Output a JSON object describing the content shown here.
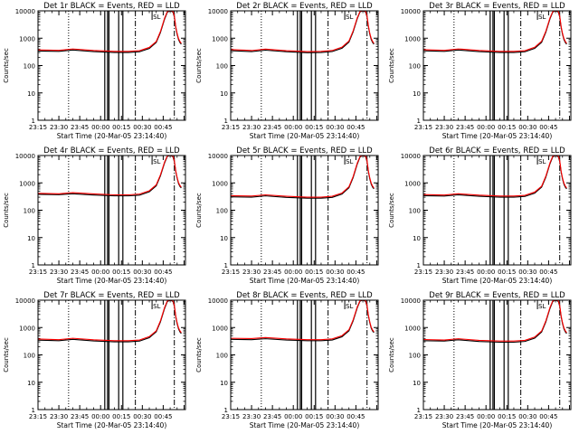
{
  "chart_data": [
    {
      "type": "line",
      "title": "Det 1r BLACK = Events, RED = LLD",
      "xlabel": "Start Time (20-Mar-05 23:14:40)",
      "ylabel": "Counts/sec",
      "series": [
        {
          "color": "#000000",
          "x": [
            0,
            15,
            25,
            40,
            55,
            65,
            73,
            80,
            85,
            88,
            91,
            93,
            95,
            96,
            97,
            98,
            99,
            100,
            101,
            102,
            103
          ],
          "y": [
            340,
            330,
            370,
            325,
            300,
            300,
            320,
            420,
            700,
            1600,
            5000,
            9000,
            10000,
            9500,
            9000,
            6000,
            2500,
            1400,
            900,
            700,
            600
          ]
        },
        {
          "color": "#ff0000",
          "x": [
            0,
            15,
            25,
            40,
            55,
            65,
            73,
            80,
            85,
            88,
            91,
            93,
            95,
            96,
            97,
            98,
            99,
            100,
            101,
            102,
            103
          ],
          "y": [
            375,
            360,
            405,
            355,
            330,
            330,
            350,
            460,
            760,
            1750,
            5400,
            9500,
            10000,
            9800,
            9500,
            6500,
            2700,
            1500,
            980,
            760,
            650
          ]
        }
      ]
    },
    {
      "type": "line",
      "title": "Det 2r BLACK = Events, RED = LLD",
      "xlabel": "Start Time (20-Mar-05 23:14:40)",
      "ylabel": "Counts/sec",
      "series": [
        {
          "color": "#000000",
          "x": [
            0,
            15,
            25,
            40,
            55,
            65,
            73,
            80,
            85,
            88,
            91,
            93,
            95,
            96,
            97,
            98,
            99,
            100,
            101,
            102,
            103
          ],
          "y": [
            350,
            325,
            365,
            320,
            295,
            300,
            325,
            430,
            720,
            1700,
            5200,
            9200,
            10000,
            9600,
            9000,
            6000,
            2600,
            1400,
            900,
            700,
            600
          ]
        },
        {
          "color": "#ff0000",
          "x": [
            0,
            15,
            25,
            40,
            55,
            65,
            73,
            80,
            85,
            88,
            91,
            93,
            95,
            96,
            97,
            98,
            99,
            100,
            101,
            102,
            103
          ],
          "y": [
            385,
            355,
            400,
            350,
            325,
            330,
            355,
            470,
            790,
            1850,
            5600,
            9600,
            10000,
            9800,
            9500,
            6500,
            2800,
            1500,
            980,
            760,
            650
          ]
        }
      ]
    },
    {
      "type": "line",
      "title": "Det 3r BLACK = Events, RED = LLD",
      "xlabel": "Start Time (20-Mar-05 23:14:40)",
      "ylabel": "Counts/sec",
      "series": [
        {
          "color": "#000000",
          "x": [
            0,
            15,
            25,
            40,
            55,
            65,
            73,
            80,
            85,
            88,
            91,
            93,
            95,
            96,
            97,
            98,
            99,
            100,
            101,
            102,
            103
          ],
          "y": [
            345,
            330,
            370,
            325,
            300,
            300,
            320,
            425,
            710,
            1650,
            5100,
            9100,
            10000,
            9500,
            9000,
            6000,
            2500,
            1400,
            900,
            700,
            600
          ]
        },
        {
          "color": "#ff0000",
          "x": [
            0,
            15,
            25,
            40,
            55,
            65,
            73,
            80,
            85,
            88,
            91,
            93,
            95,
            96,
            97,
            98,
            99,
            100,
            101,
            102,
            103
          ],
          "y": [
            380,
            360,
            405,
            355,
            330,
            330,
            350,
            465,
            780,
            1800,
            5500,
            9500,
            10000,
            9800,
            9500,
            6500,
            2700,
            1500,
            980,
            760,
            650
          ]
        }
      ]
    },
    {
      "type": "line",
      "title": "Det 4r BLACK = Events, RED = LLD",
      "xlabel": "Start Time (20-Mar-05 23:14:40)",
      "ylabel": "Counts/sec",
      "series": [
        {
          "color": "#000000",
          "x": [
            0,
            15,
            25,
            40,
            55,
            65,
            73,
            80,
            85,
            88,
            91,
            93,
            95,
            96,
            97,
            98,
            99,
            100,
            101,
            102,
            103
          ],
          "y": [
            380,
            370,
            400,
            360,
            335,
            335,
            355,
            470,
            780,
            1800,
            5400,
            9400,
            10000,
            9600,
            9000,
            6000,
            2600,
            1500,
            950,
            750,
            650
          ]
        },
        {
          "color": "#ff0000",
          "x": [
            0,
            15,
            25,
            40,
            55,
            65,
            73,
            80,
            85,
            88,
            91,
            93,
            95,
            96,
            97,
            98,
            99,
            100,
            101,
            102,
            103
          ],
          "y": [
            415,
            400,
            440,
            395,
            365,
            365,
            390,
            515,
            850,
            1950,
            5800,
            9800,
            10000,
            9800,
            9500,
            6500,
            2800,
            1600,
            1030,
            810,
            700
          ]
        }
      ]
    },
    {
      "type": "line",
      "title": "Det 5r BLACK = Events, RED = LLD",
      "xlabel": "Start Time (20-Mar-05 23:14:40)",
      "ylabel": "Counts/sec",
      "series": [
        {
          "color": "#000000",
          "x": [
            0,
            15,
            25,
            40,
            55,
            65,
            73,
            80,
            85,
            88,
            91,
            93,
            95,
            96,
            97,
            98,
            99,
            100,
            101,
            102,
            103
          ],
          "y": [
            310,
            300,
            335,
            295,
            275,
            275,
            295,
            390,
            660,
            1550,
            4900,
            8900,
            10000,
            9500,
            9000,
            6000,
            2500,
            1400,
            900,
            700,
            600
          ]
        },
        {
          "color": "#ff0000",
          "x": [
            0,
            15,
            25,
            40,
            55,
            65,
            73,
            80,
            85,
            88,
            91,
            93,
            95,
            96,
            97,
            98,
            99,
            100,
            101,
            102,
            103
          ],
          "y": [
            340,
            330,
            365,
            325,
            300,
            300,
            325,
            425,
            720,
            1700,
            5300,
            9300,
            10000,
            9800,
            9500,
            6500,
            2700,
            1500,
            980,
            760,
            650
          ]
        }
      ]
    },
    {
      "type": "line",
      "title": "Det 6r BLACK = Events, RED = LLD",
      "xlabel": "Start Time (20-Mar-05 23:14:40)",
      "ylabel": "Counts/sec",
      "series": [
        {
          "color": "#000000",
          "x": [
            0,
            15,
            25,
            40,
            55,
            65,
            73,
            80,
            85,
            88,
            91,
            93,
            95,
            96,
            97,
            98,
            99,
            100,
            101,
            102,
            103
          ],
          "y": [
            340,
            330,
            365,
            325,
            300,
            300,
            320,
            420,
            700,
            1600,
            5000,
            9000,
            10000,
            9500,
            9000,
            6000,
            2500,
            1400,
            900,
            700,
            600
          ]
        },
        {
          "color": "#ff0000",
          "x": [
            0,
            15,
            25,
            40,
            55,
            65,
            73,
            80,
            85,
            88,
            91,
            93,
            95,
            96,
            97,
            98,
            99,
            100,
            101,
            102,
            103
          ],
          "y": [
            375,
            360,
            400,
            355,
            330,
            330,
            350,
            460,
            760,
            1750,
            5400,
            9500,
            10000,
            9800,
            9500,
            6500,
            2700,
            1500,
            980,
            760,
            650
          ]
        }
      ]
    },
    {
      "type": "line",
      "title": "Det 7r BLACK = Events, RED = LLD",
      "xlabel": "Start Time (20-Mar-05 23:14:40)",
      "ylabel": "Counts/sec",
      "series": [
        {
          "color": "#000000",
          "x": [
            0,
            15,
            25,
            40,
            55,
            65,
            73,
            80,
            85,
            88,
            91,
            93,
            95,
            96,
            97,
            98,
            99,
            100,
            101,
            102,
            103
          ],
          "y": [
            345,
            330,
            370,
            325,
            300,
            300,
            320,
            425,
            700,
            1600,
            5000,
            9000,
            10000,
            9500,
            9000,
            6000,
            2500,
            1400,
            900,
            700,
            600
          ]
        },
        {
          "color": "#ff0000",
          "x": [
            0,
            15,
            25,
            40,
            55,
            65,
            73,
            80,
            85,
            88,
            91,
            93,
            95,
            96,
            97,
            98,
            99,
            100,
            101,
            102,
            103
          ],
          "y": [
            380,
            360,
            405,
            355,
            330,
            330,
            350,
            465,
            760,
            1750,
            5400,
            9500,
            10000,
            9800,
            9500,
            6500,
            2700,
            1500,
            980,
            760,
            650
          ]
        }
      ]
    },
    {
      "type": "line",
      "title": "Det 8r BLACK = Events, RED = LLD",
      "xlabel": "Start Time (20-Mar-05 23:14:40)",
      "ylabel": "Counts/sec",
      "series": [
        {
          "color": "#000000",
          "x": [
            0,
            15,
            25,
            40,
            55,
            65,
            73,
            80,
            85,
            88,
            91,
            93,
            95,
            96,
            97,
            98,
            99,
            100,
            101,
            102,
            103
          ],
          "y": [
            370,
            360,
            390,
            350,
            330,
            330,
            350,
            460,
            760,
            1750,
            5300,
            9300,
            10000,
            9600,
            9000,
            6000,
            2600,
            1500,
            950,
            750,
            650
          ]
        },
        {
          "color": "#ff0000",
          "x": [
            0,
            15,
            25,
            40,
            55,
            65,
            73,
            80,
            85,
            88,
            91,
            93,
            95,
            96,
            97,
            98,
            99,
            100,
            101,
            102,
            103
          ],
          "y": [
            405,
            395,
            430,
            385,
            360,
            360,
            385,
            505,
            830,
            1900,
            5700,
            9700,
            10000,
            9800,
            9500,
            6500,
            2800,
            1600,
            1030,
            810,
            700
          ]
        }
      ]
    },
    {
      "type": "line",
      "title": "Det 9r BLACK = Events, RED = LLD",
      "xlabel": "Start Time (20-Mar-05 23:14:40)",
      "ylabel": "Counts/sec",
      "series": [
        {
          "color": "#000000",
          "x": [
            0,
            15,
            25,
            40,
            55,
            65,
            73,
            80,
            85,
            88,
            91,
            93,
            95,
            96,
            97,
            98,
            99,
            100,
            101,
            102,
            103
          ],
          "y": [
            330,
            320,
            355,
            310,
            290,
            290,
            310,
            410,
            690,
            1600,
            5000,
            9000,
            10000,
            9500,
            9000,
            6000,
            2500,
            1400,
            900,
            700,
            600
          ]
        },
        {
          "color": "#ff0000",
          "x": [
            0,
            15,
            25,
            40,
            55,
            65,
            73,
            80,
            85,
            88,
            91,
            93,
            95,
            96,
            97,
            98,
            99,
            100,
            101,
            102,
            103
          ],
          "y": [
            365,
            350,
            390,
            340,
            320,
            320,
            340,
            450,
            750,
            1750,
            5400,
            9500,
            10000,
            9800,
            9500,
            6500,
            2700,
            1500,
            980,
            760,
            650
          ]
        }
      ]
    }
  ],
  "axes": {
    "y_scale": "log",
    "ylim": [
      1,
      10000
    ],
    "y_ticks": [
      1,
      10,
      100,
      1000,
      10000
    ],
    "y_tick_labels": [
      "1",
      "10",
      "100",
      "1000",
      "10000"
    ],
    "xlim": [
      0,
      106
    ],
    "x_ticks": [
      0,
      15,
      30,
      45,
      60,
      75,
      90,
      105
    ],
    "x_tick_labels": [
      "23:15",
      "23:30",
      "23:45",
      "00:00",
      "00:15",
      "00:30",
      "00:45",
      ""
    ],
    "dotted_vlines": [
      22
    ],
    "solid_vlines": [
      48,
      50,
      51,
      58,
      61
    ],
    "dashdot_vlines": [
      70,
      98
    ],
    "flag_x": 82,
    "flag_label": "SL"
  },
  "layout": {
    "rows": 3,
    "cols": 3
  }
}
